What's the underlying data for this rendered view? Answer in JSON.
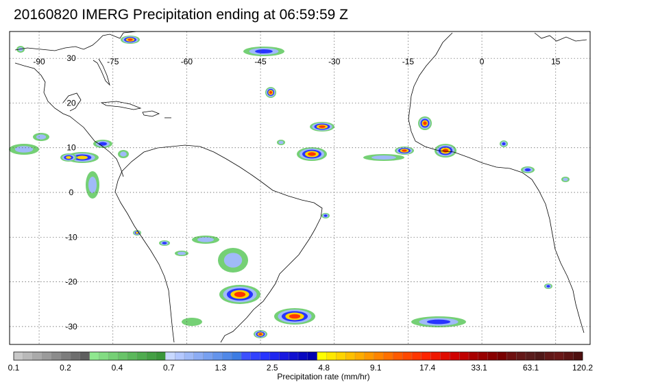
{
  "title": "20160820 IMERG Precipitation ending at 06:59:59 Z",
  "map": {
    "lon_labels": [
      "-90",
      "-75",
      "-60",
      "-45",
      "-30",
      "-15",
      "0",
      "15"
    ],
    "lat_labels": [
      "30",
      "20",
      "10",
      "0",
      "-10",
      "-20",
      "-30"
    ],
    "lon_values": [
      -90,
      -75,
      -60,
      -45,
      -30,
      -15,
      0,
      15
    ],
    "lat_values": [
      30,
      20,
      10,
      0,
      -10,
      -20,
      -30
    ]
  },
  "colorbar": {
    "label": "Precipitation rate (mm/hr)",
    "tick_labels": [
      "0.1",
      "0.2",
      "0.4",
      "0.7",
      "1.3",
      "2.5",
      "4.8",
      "9.1",
      "17.4",
      "33.1",
      "63.1",
      "120.2"
    ],
    "colors": [
      "#c8c8c8",
      "#b9b9b9",
      "#aaaaaa",
      "#9b9b9b",
      "#8c8c8c",
      "#7d7d7d",
      "#6e6e6e",
      "#5f5f5f",
      "#8fe88f",
      "#82dc82",
      "#75d075",
      "#68c468",
      "#5bb85b",
      "#4fac4f",
      "#44a044",
      "#3a963a",
      "#c8d8ff",
      "#b4c8ff",
      "#a0baf8",
      "#8cacf4",
      "#78a0f0",
      "#6494ec",
      "#5088e8",
      "#3c7ce4",
      "#3c50ff",
      "#3242ff",
      "#2834ff",
      "#1e26f0",
      "#1818e0",
      "#1010d0",
      "#0808c0",
      "#0000b0",
      "#ffff00",
      "#ffe800",
      "#ffd400",
      "#ffc000",
      "#ffac00",
      "#ff9800",
      "#ff8400",
      "#ff7000",
      "#ff5a00",
      "#ff4800",
      "#ff3600",
      "#ff2400",
      "#f01800",
      "#e00c00",
      "#d00000",
      "#c00000",
      "#a80000",
      "#980000",
      "#880000",
      "#780000",
      "#6e1010",
      "#641818",
      "#5a1c1c",
      "#501818",
      "#621818",
      "#6a1818",
      "#5c1414",
      "#4e1010"
    ]
  }
}
